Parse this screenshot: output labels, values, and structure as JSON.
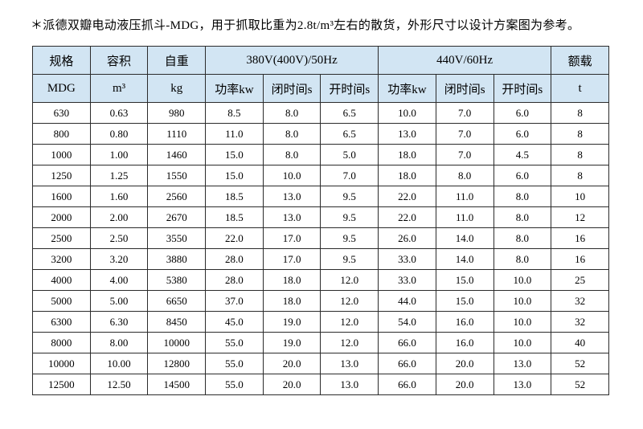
{
  "page": {
    "title": "＊派德双瓣电动液压抓斗-MDG，用于抓取比重为2.8t/m³左右的散货，外形尺寸以设计方案图为参考。"
  },
  "colors": {
    "header_bg": "#d2e5f3",
    "border": "#2b2b2b",
    "text": "#000000",
    "page_bg": "#ffffff"
  },
  "table": {
    "header": {
      "col_spec": {
        "label": "规格",
        "unit": "MDG"
      },
      "col_capacity": {
        "label": "容积",
        "unit": "m³"
      },
      "col_weight": {
        "label": "自重",
        "unit": "kg"
      },
      "group_380": {
        "label": "380V(400V)/50Hz",
        "sub": [
          "功率kw",
          "闭时间s",
          "开时间s"
        ]
      },
      "group_440": {
        "label": "440V/60Hz",
        "sub": [
          "功率kw",
          "闭时间s",
          "开时间s"
        ]
      },
      "col_load": {
        "label": "额载",
        "unit": "t"
      }
    },
    "rows": [
      [
        "630",
        "0.63",
        "980",
        "8.5",
        "8.0",
        "6.5",
        "10.0",
        "7.0",
        "6.0",
        "8"
      ],
      [
        "800",
        "0.80",
        "1110",
        "11.0",
        "8.0",
        "6.5",
        "13.0",
        "7.0",
        "6.0",
        "8"
      ],
      [
        "1000",
        "1.00",
        "1460",
        "15.0",
        "8.0",
        "5.0",
        "18.0",
        "7.0",
        "4.5",
        "8"
      ],
      [
        "1250",
        "1.25",
        "1550",
        "15.0",
        "10.0",
        "7.0",
        "18.0",
        "8.0",
        "6.0",
        "8"
      ],
      [
        "1600",
        "1.60",
        "2560",
        "18.5",
        "13.0",
        "9.5",
        "22.0",
        "11.0",
        "8.0",
        "10"
      ],
      [
        "2000",
        "2.00",
        "2670",
        "18.5",
        "13.0",
        "9.5",
        "22.0",
        "11.0",
        "8.0",
        "12"
      ],
      [
        "2500",
        "2.50",
        "3550",
        "22.0",
        "17.0",
        "9.5",
        "26.0",
        "14.0",
        "8.0",
        "16"
      ],
      [
        "3200",
        "3.20",
        "3880",
        "28.0",
        "17.0",
        "9.5",
        "33.0",
        "14.0",
        "8.0",
        "16"
      ],
      [
        "4000",
        "4.00",
        "5380",
        "28.0",
        "18.0",
        "12.0",
        "33.0",
        "15.0",
        "10.0",
        "25"
      ],
      [
        "5000",
        "5.00",
        "6650",
        "37.0",
        "18.0",
        "12.0",
        "44.0",
        "15.0",
        "10.0",
        "32"
      ],
      [
        "6300",
        "6.30",
        "8450",
        "45.0",
        "19.0",
        "12.0",
        "54.0",
        "16.0",
        "10.0",
        "32"
      ],
      [
        "8000",
        "8.00",
        "10000",
        "55.0",
        "19.0",
        "12.0",
        "66.0",
        "16.0",
        "10.0",
        "40"
      ],
      [
        "10000",
        "10.00",
        "12800",
        "55.0",
        "20.0",
        "13.0",
        "66.0",
        "20.0",
        "13.0",
        "52"
      ],
      [
        "12500",
        "12.50",
        "14500",
        "55.0",
        "20.0",
        "13.0",
        "66.0",
        "20.0",
        "13.0",
        "52"
      ]
    ]
  }
}
